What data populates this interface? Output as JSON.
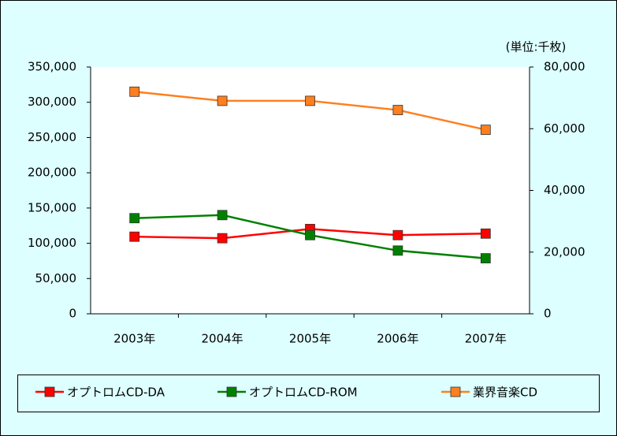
{
  "chart_data": {
    "type": "line",
    "annotation": "(単位:千枚)",
    "categories": [
      "2003年",
      "2004年",
      "2005年",
      "2006年",
      "2007年"
    ],
    "series": [
      {
        "name": "オプトロムCD-DA",
        "color": "#ff0000",
        "axis": "y2",
        "values": [
          25000,
          24500,
          27500,
          25500,
          26000
        ]
      },
      {
        "name": "オプトロムCD-ROM",
        "color": "#008000",
        "axis": "y2",
        "values": [
          31000,
          32000,
          25500,
          20500,
          18000
        ]
      },
      {
        "name": "業界音楽CD",
        "color": "#ff7f1e",
        "values": [
          315000,
          302000,
          302000,
          289000,
          261000
        ]
      }
    ],
    "ylim": [
      0,
      350000
    ],
    "yticks": [
      0,
      {
        "value": 50000,
        "label": "50,000"
      },
      {
        "value": 100000,
        "label": "100,000"
      },
      {
        "value": 150000,
        "label": "150,000"
      },
      {
        "value": 200000,
        "label": "200,000"
      },
      {
        "value": 250000,
        "label": "250,000"
      },
      {
        "value": 300000,
        "label": "300,000"
      },
      {
        "value": 350000,
        "label": "350,000"
      }
    ],
    "y2lim": [
      0,
      80000
    ],
    "y2ticks": [
      0,
      {
        "value": 20000,
        "label": "20,000"
      },
      {
        "value": 40000,
        "label": "40,000"
      },
      {
        "value": 60000,
        "label": "60,000"
      },
      {
        "value": 80000,
        "label": "80,000"
      }
    ],
    "legend": "bottom"
  }
}
